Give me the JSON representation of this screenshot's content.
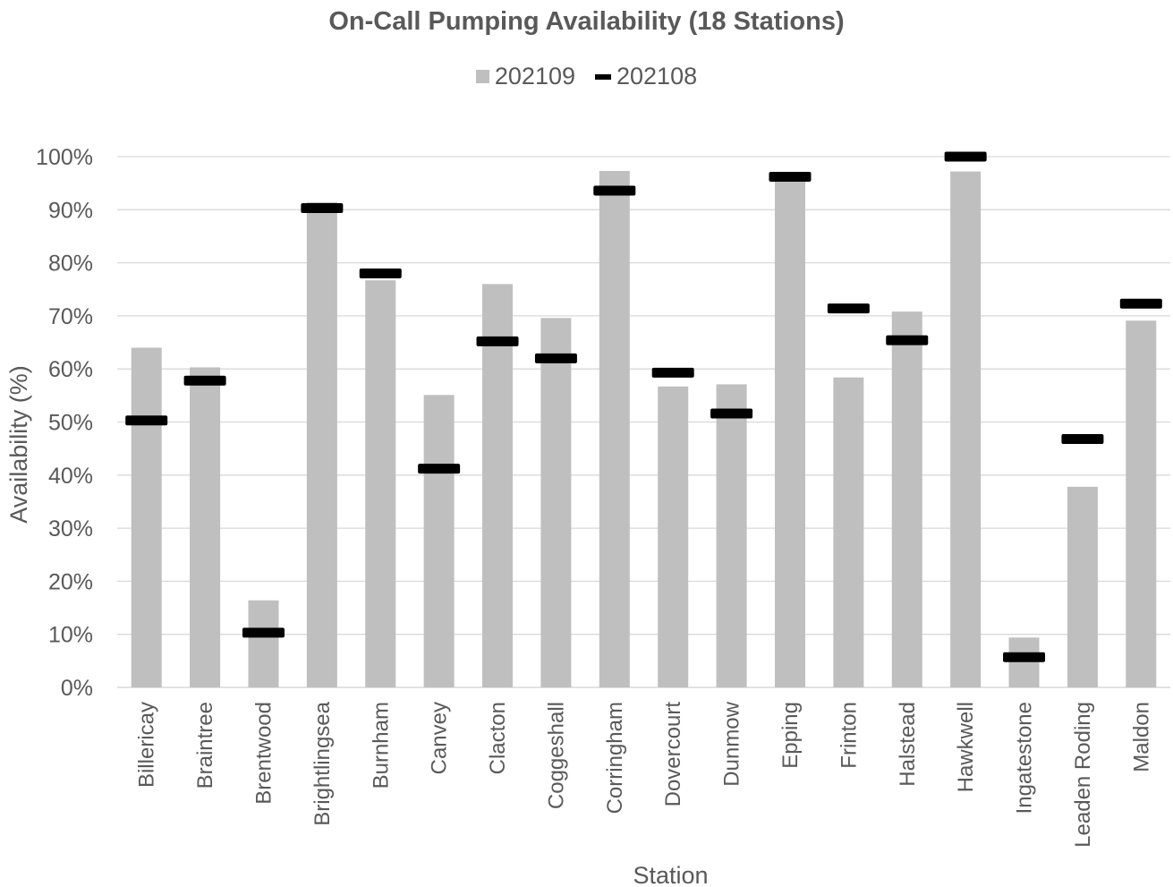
{
  "chart_data": {
    "type": "bar",
    "title": "On-Call Pumping Availability (18 Stations)",
    "xlabel": "Station",
    "ylabel": "Availability (%)",
    "ylim": [
      0,
      100
    ],
    "yticks": [
      "0%",
      "10%",
      "20%",
      "30%",
      "40%",
      "50%",
      "60%",
      "70%",
      "80%",
      "90%",
      "100%"
    ],
    "grid": true,
    "legend_position": "top",
    "categories": [
      "Billericay",
      "Braintree",
      "Brentwood",
      "Brightlingsea",
      "Burnham",
      "Canvey",
      "Clacton",
      "Coggeshall",
      "Corringham",
      "Dovercourt",
      "Dunmow",
      "Epping",
      "Frinton",
      "Halstead",
      "Hawkwell",
      "Ingatestone",
      "Leaden Roding",
      "Maldon"
    ],
    "series": [
      {
        "name": "202109",
        "mark": "bar",
        "color": "#bfbfbf",
        "values": [
          64.0,
          60.3,
          16.4,
          91.4,
          76.7,
          55.1,
          76.0,
          69.6,
          97.3,
          56.7,
          57.1,
          96.1,
          58.4,
          70.8,
          97.2,
          9.4,
          37.8,
          69.1
        ]
      },
      {
        "name": "202108",
        "mark": "marker",
        "color": "#000000",
        "values": [
          50.3,
          57.8,
          10.3,
          90.3,
          78.0,
          41.2,
          65.2,
          62.0,
          93.6,
          59.3,
          51.6,
          96.2,
          71.4,
          65.4,
          100.0,
          5.7,
          46.8,
          72.3
        ]
      }
    ]
  }
}
